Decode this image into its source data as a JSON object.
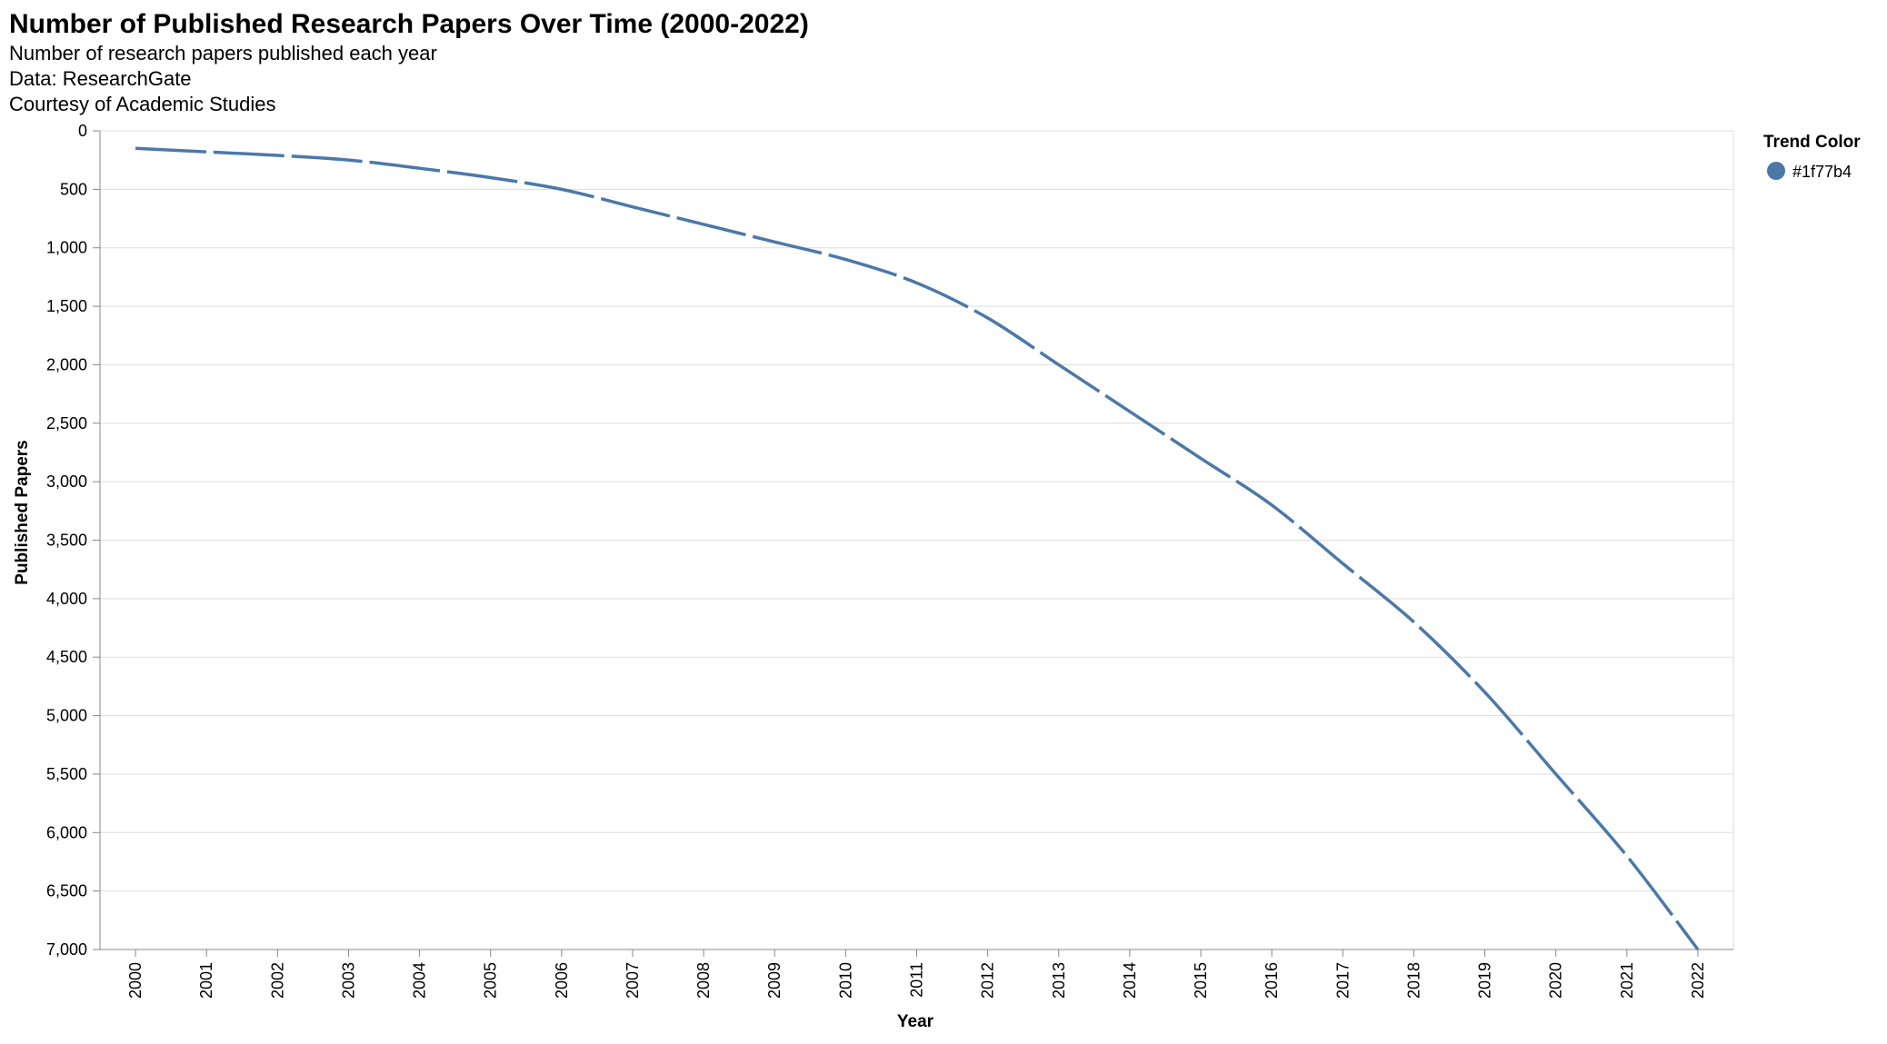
{
  "chart_data": {
    "type": "line",
    "title": "Number of Published Research Papers Over Time (2000-2022)",
    "subtitle": [
      "Number of research papers published each year",
      "Data: ResearchGate",
      "Courtesy of Academic Studies"
    ],
    "xlabel": "Year",
    "ylabel": "Published Papers",
    "x": [
      "2000",
      "2001",
      "2002",
      "2003",
      "2004",
      "2005",
      "2006",
      "2007",
      "2008",
      "2009",
      "2010",
      "2011",
      "2012",
      "2013",
      "2014",
      "2015",
      "2016",
      "2017",
      "2018",
      "2019",
      "2020",
      "2021",
      "2022"
    ],
    "series": [
      {
        "name": "#1f77b4",
        "values": [
          150,
          180,
          210,
          250,
          320,
          400,
          500,
          650,
          800,
          950,
          1100,
          1300,
          1600,
          2000,
          2400,
          2800,
          3200,
          3700,
          4200,
          4800,
          5500,
          6200,
          7000
        ]
      }
    ],
    "ylim": [
      0,
      7000
    ],
    "y_ticks": [
      "0",
      "500",
      "1,000",
      "1,500",
      "2,000",
      "2,500",
      "3,000",
      "3,500",
      "4,000",
      "4,500",
      "5,000",
      "5,500",
      "6,000",
      "6,500",
      "7,000"
    ],
    "y_tick_values": [
      0,
      500,
      1000,
      1500,
      2000,
      2500,
      3000,
      3500,
      4000,
      4500,
      5000,
      5500,
      6000,
      6500,
      7000
    ],
    "y_axis_reversed": true,
    "grid": true,
    "line_style": "dashed",
    "line_color": "#4c78a8",
    "legend": {
      "title": "Trend Color",
      "placement": "top-right",
      "items": [
        {
          "label": "#1f77b4",
          "color": "#4c78a8"
        }
      ]
    }
  }
}
